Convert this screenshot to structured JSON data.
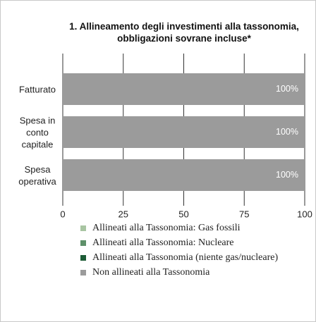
{
  "chart_data": {
    "type": "bar",
    "orientation": "horizontal",
    "stacked": true,
    "title": "1. Allineamento degli investimenti alla tassonomia, obbligazioni sovrane incluse*",
    "categories": [
      "Fatturato",
      "Spesa in conto capitale",
      "Spesa operativa"
    ],
    "series": [
      {
        "name": "Allineati alla Tassonomia: Gas fossili",
        "color": "#a8c5a2",
        "values": [
          0,
          0,
          0
        ]
      },
      {
        "name": "Allineati alla Tassonomia: Nucleare",
        "color": "#5e9069",
        "values": [
          0,
          0,
          0
        ]
      },
      {
        "name": "Allineati alla Tassonomia (niente gas/nucleare)",
        "color": "#1d5c36",
        "values": [
          0,
          0,
          0
        ]
      },
      {
        "name": "Non allineati alla Tassonomia",
        "color": "#9b9b9b",
        "values": [
          100,
          100,
          100
        ],
        "value_labels": [
          "100%",
          "100%",
          "100%"
        ]
      }
    ],
    "xlim": [
      0,
      100
    ],
    "xticks": [
      0,
      25,
      50,
      75,
      100
    ],
    "grid": true,
    "legend": "bottom"
  }
}
